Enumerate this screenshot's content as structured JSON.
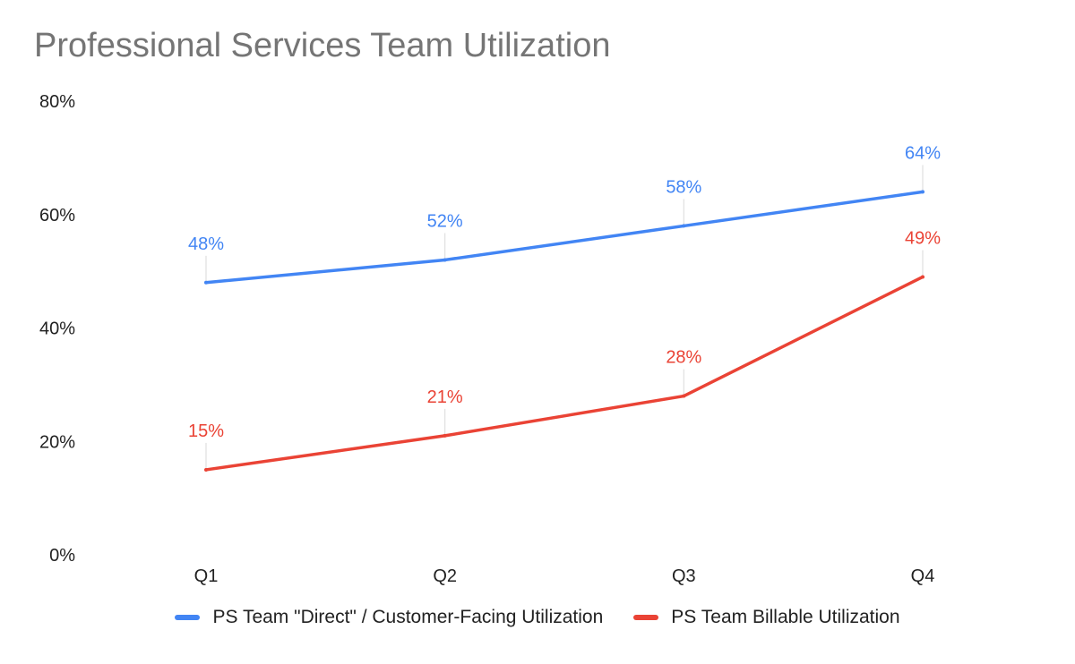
{
  "chart_data": {
    "type": "line",
    "title": "Professional Services Team Utilization",
    "xlabel": "",
    "ylabel": "",
    "categories": [
      "Q1",
      "Q2",
      "Q3",
      "Q4"
    ],
    "ylim": [
      0,
      80
    ],
    "yticks": [
      0,
      20,
      40,
      60,
      80
    ],
    "ytick_labels": [
      "0%",
      "20%",
      "40%",
      "60%",
      "80%"
    ],
    "grid": false,
    "legend_position": "bottom",
    "series": [
      {
        "name": "PS Team \"Direct\" / Customer-Facing Utilization",
        "color": "#4285f4",
        "values": [
          48,
          52,
          58,
          64
        ],
        "labels": [
          "48%",
          "52%",
          "58%",
          "64%"
        ]
      },
      {
        "name": "PS Team Billable Utilization",
        "color": "#ea4335",
        "values": [
          15,
          21,
          28,
          49
        ],
        "labels": [
          "15%",
          "21%",
          "28%",
          "49%"
        ]
      }
    ]
  }
}
